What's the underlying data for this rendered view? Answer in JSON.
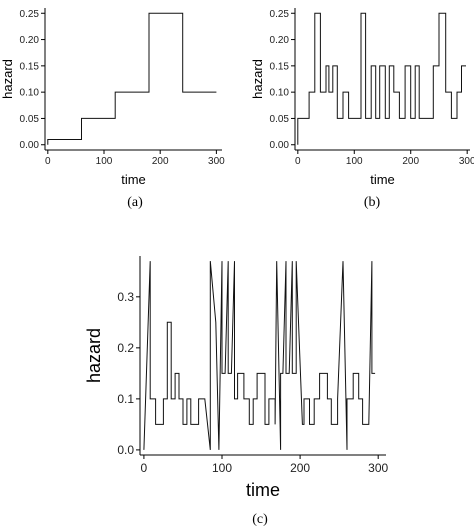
{
  "chart_data": [
    {
      "type": "line",
      "panel": "a",
      "caption": "(a)",
      "xlabel": "time",
      "ylabel": "hazard",
      "xlim": [
        -5,
        310
      ],
      "ylim": [
        -0.01,
        0.26
      ],
      "xticks": [
        0,
        100,
        200,
        300
      ],
      "yticks": [
        0.0,
        0.05,
        0.1,
        0.15,
        0.2,
        0.25
      ],
      "ytick_labels": [
        "0.00",
        "0.05",
        "0.10",
        "0.15",
        "0.20",
        "0.25"
      ],
      "grid": false,
      "series": [
        {
          "x": [
            0,
            0,
            60,
            60,
            120,
            120,
            180,
            180,
            240,
            240,
            300
          ],
          "y": [
            0,
            0.01,
            0.01,
            0.05,
            0.05,
            0.1,
            0.1,
            0.25,
            0.25,
            0.1,
            0.1
          ]
        }
      ]
    },
    {
      "type": "line",
      "panel": "b",
      "caption": "(b)",
      "xlabel": "time",
      "ylabel": "hazard",
      "xlim": [
        -5,
        305
      ],
      "ylim": [
        -0.01,
        0.26
      ],
      "xticks": [
        0,
        100,
        200,
        300
      ],
      "yticks": [
        0.0,
        0.05,
        0.1,
        0.15,
        0.2,
        0.25
      ],
      "ytick_labels": [
        "0.00",
        "0.05",
        "0.10",
        "0.15",
        "0.20",
        "0.25"
      ],
      "grid": false,
      "series": [
        {
          "x": [
            0,
            0,
            20,
            20,
            30,
            30,
            40,
            40,
            50,
            50,
            55,
            55,
            62,
            62,
            70,
            70,
            80,
            80,
            90,
            90,
            100,
            100,
            112,
            112,
            120,
            120,
            130,
            130,
            138,
            138,
            145,
            145,
            155,
            155,
            162,
            162,
            170,
            170,
            180,
            180,
            190,
            190,
            200,
            200,
            208,
            208,
            215,
            215,
            225,
            225,
            240,
            240,
            250,
            250,
            262,
            262,
            272,
            272,
            282,
            282,
            290,
            290,
            298
          ],
          "y": [
            0,
            0.05,
            0.05,
            0.1,
            0.1,
            0.25,
            0.25,
            0.1,
            0.1,
            0.15,
            0.15,
            0.1,
            0.1,
            0.15,
            0.15,
            0.05,
            0.05,
            0.1,
            0.1,
            0.05,
            0.05,
            0.05,
            0.05,
            0.25,
            0.25,
            0.05,
            0.05,
            0.15,
            0.15,
            0.05,
            0.05,
            0.15,
            0.15,
            0.05,
            0.05,
            0.15,
            0.15,
            0.1,
            0.1,
            0.05,
            0.05,
            0.15,
            0.15,
            0.05,
            0.05,
            0.15,
            0.15,
            0.05,
            0.05,
            0.05,
            0.05,
            0.15,
            0.15,
            0.25,
            0.25,
            0.1,
            0.1,
            0.05,
            0.05,
            0.1,
            0.1,
            0.15,
            0.15
          ]
        }
      ]
    },
    {
      "type": "line",
      "panel": "c",
      "caption": "(c)",
      "xlabel": "time",
      "ylabel": "hazard",
      "xlim": [
        -5,
        310
      ],
      "ylim": [
        -0.01,
        0.38
      ],
      "xticks": [
        0,
        100,
        200,
        300
      ],
      "yticks": [
        0.0,
        0.1,
        0.2,
        0.3
      ],
      "ytick_labels": [
        "0.0",
        "0.1",
        "0.2",
        "0.3"
      ],
      "grid": false,
      "series": [
        {
          "x": [
            0,
            8,
            8,
            15,
            15,
            25,
            25,
            30,
            30,
            35,
            35,
            40,
            40,
            45,
            45,
            50,
            50,
            55,
            55,
            60,
            60,
            70,
            70,
            78,
            85,
            85,
            92,
            92,
            96,
            100,
            100,
            104,
            108,
            108,
            112,
            116,
            116,
            120,
            120,
            128,
            128,
            135,
            135,
            140,
            140,
            145,
            145,
            155,
            155,
            160,
            160,
            168,
            168,
            170,
            175,
            175,
            178,
            182,
            182,
            186,
            190,
            190,
            195,
            195,
            203,
            205,
            205,
            212,
            212,
            218,
            218,
            225,
            225,
            235,
            235,
            240,
            240,
            248,
            248,
            255,
            260,
            260,
            268,
            268,
            275,
            275,
            280,
            280,
            288,
            292,
            292,
            296
          ],
          "y": [
            0,
            0.37,
            0.1,
            0.1,
            0.05,
            0.05,
            0.1,
            0.1,
            0.25,
            0.25,
            0.1,
            0.1,
            0.15,
            0.15,
            0.1,
            0.1,
            0.05,
            0.05,
            0.1,
            0.1,
            0.05,
            0.05,
            0.1,
            0.1,
            0,
            0.37,
            0.25,
            0.25,
            0,
            0.37,
            0.15,
            0.15,
            0.37,
            0.15,
            0.15,
            0.37,
            0.1,
            0.1,
            0.15,
            0.15,
            0.1,
            0.1,
            0.05,
            0.05,
            0.1,
            0.1,
            0.15,
            0.15,
            0.05,
            0.05,
            0.1,
            0.1,
            0.05,
            0.37,
            0,
            0.15,
            0.15,
            0.37,
            0.15,
            0.15,
            0.37,
            0.15,
            0.15,
            0.37,
            0.05,
            0.05,
            0.1,
            0.1,
            0.05,
            0.05,
            0.1,
            0.1,
            0.15,
            0.15,
            0.1,
            0.1,
            0.05,
            0.05,
            0.1,
            0.37,
            0,
            0.1,
            0.1,
            0.15,
            0.15,
            0.1,
            0.1,
            0.05,
            0.05,
            0.37,
            0.15,
            0.15
          ]
        }
      ]
    }
  ]
}
